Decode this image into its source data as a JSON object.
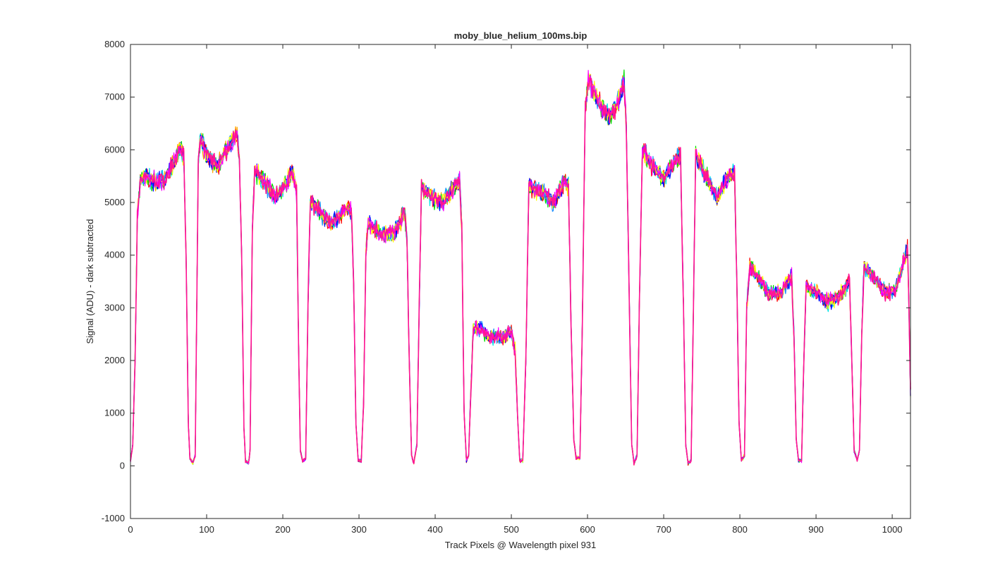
{
  "chart_data": {
    "type": "line",
    "title": "moby_blue_helium_100ms.bip",
    "xlabel": "Track Pixels @ Wavelength pixel 931",
    "ylabel": "Signal (ADU) - dark subtracted",
    "xlim": [
      0,
      1024
    ],
    "ylim": [
      -1000,
      8000
    ],
    "xticks": [
      0,
      100,
      200,
      300,
      400,
      500,
      600,
      700,
      800,
      900,
      1000
    ],
    "yticks": [
      -1000,
      0,
      1000,
      2000,
      3000,
      4000,
      5000,
      6000,
      7000,
      8000
    ],
    "grid": false,
    "legend": "none",
    "series_colors": [
      "#ffa500",
      "#ff0000",
      "#00e000",
      "#00e5e5",
      "#1e90ff",
      "#0000ff",
      "#ffff00",
      "#ff00ff"
    ],
    "top_series_color": "#ff1493",
    "noise_amplitude": 70,
    "trace_profile": [
      [
        0,
        100
      ],
      [
        3,
        400
      ],
      [
        6,
        2000
      ],
      [
        9,
        4700
      ],
      [
        13,
        5400
      ],
      [
        20,
        5500
      ],
      [
        30,
        5400
      ],
      [
        45,
        5450
      ],
      [
        55,
        5700
      ],
      [
        66,
        6050
      ],
      [
        70,
        5900
      ],
      [
        73,
        4000
      ],
      [
        76,
        800
      ],
      [
        78,
        150
      ],
      [
        82,
        50
      ],
      [
        85,
        200
      ],
      [
        87,
        3000
      ],
      [
        89,
        5800
      ],
      [
        92,
        6200
      ],
      [
        100,
        5900
      ],
      [
        115,
        5700
      ],
      [
        130,
        6100
      ],
      [
        140,
        6300
      ],
      [
        143,
        5800
      ],
      [
        146,
        4000
      ],
      [
        149,
        700
      ],
      [
        151,
        100
      ],
      [
        155,
        50
      ],
      [
        157,
        300
      ],
      [
        160,
        4500
      ],
      [
        163,
        5600
      ],
      [
        175,
        5400
      ],
      [
        190,
        5100
      ],
      [
        205,
        5350
      ],
      [
        213,
        5600
      ],
      [
        218,
        5200
      ],
      [
        221,
        2000
      ],
      [
        223,
        300
      ],
      [
        226,
        80
      ],
      [
        230,
        150
      ],
      [
        233,
        3000
      ],
      [
        236,
        5000
      ],
      [
        250,
        4800
      ],
      [
        265,
        4600
      ],
      [
        285,
        4900
      ],
      [
        290,
        4800
      ],
      [
        293,
        3500
      ],
      [
        296,
        800
      ],
      [
        299,
        100
      ],
      [
        303,
        100
      ],
      [
        306,
        1200
      ],
      [
        309,
        4000
      ],
      [
        312,
        4600
      ],
      [
        330,
        4400
      ],
      [
        345,
        4400
      ],
      [
        360,
        4800
      ],
      [
        363,
        4300
      ],
      [
        366,
        2000
      ],
      [
        369,
        200
      ],
      [
        372,
        50
      ],
      [
        376,
        400
      ],
      [
        379,
        3000
      ],
      [
        382,
        5300
      ],
      [
        395,
        5100
      ],
      [
        410,
        5000
      ],
      [
        425,
        5300
      ],
      [
        432,
        5400
      ],
      [
        435,
        4500
      ],
      [
        438,
        1000
      ],
      [
        441,
        100
      ],
      [
        444,
        200
      ],
      [
        447,
        1500
      ],
      [
        450,
        2600
      ],
      [
        460,
        2600
      ],
      [
        470,
        2450
      ],
      [
        490,
        2450
      ],
      [
        500,
        2550
      ],
      [
        505,
        2200
      ],
      [
        508,
        1000
      ],
      [
        511,
        100
      ],
      [
        515,
        100
      ],
      [
        519,
        2000
      ],
      [
        523,
        5300
      ],
      [
        540,
        5200
      ],
      [
        555,
        5000
      ],
      [
        570,
        5400
      ],
      [
        575,
        5300
      ],
      [
        578,
        3000
      ],
      [
        582,
        500
      ],
      [
        585,
        150
      ],
      [
        590,
        150
      ],
      [
        593,
        2500
      ],
      [
        597,
        6800
      ],
      [
        601,
        7300
      ],
      [
        615,
        6900
      ],
      [
        628,
        6600
      ],
      [
        640,
        6900
      ],
      [
        648,
        7300
      ],
      [
        651,
        6400
      ],
      [
        655,
        3000
      ],
      [
        658,
        400
      ],
      [
        661,
        50
      ],
      [
        665,
        200
      ],
      [
        668,
        3000
      ],
      [
        672,
        6000
      ],
      [
        685,
        5700
      ],
      [
        700,
        5450
      ],
      [
        715,
        5800
      ],
      [
        722,
        5900
      ],
      [
        726,
        3000
      ],
      [
        729,
        400
      ],
      [
        732,
        50
      ],
      [
        736,
        100
      ],
      [
        739,
        3000
      ],
      [
        742,
        5900
      ],
      [
        755,
        5500
      ],
      [
        770,
        5100
      ],
      [
        785,
        5500
      ],
      [
        793,
        5600
      ],
      [
        796,
        3500
      ],
      [
        799,
        800
      ],
      [
        802,
        100
      ],
      [
        806,
        200
      ],
      [
        809,
        3000
      ],
      [
        813,
        3800
      ],
      [
        825,
        3550
      ],
      [
        840,
        3250
      ],
      [
        855,
        3300
      ],
      [
        868,
        3600
      ],
      [
        871,
        2500
      ],
      [
        874,
        500
      ],
      [
        877,
        100
      ],
      [
        881,
        100
      ],
      [
        884,
        2000
      ],
      [
        887,
        3400
      ],
      [
        900,
        3300
      ],
      [
        915,
        3100
      ],
      [
        930,
        3200
      ],
      [
        944,
        3500
      ],
      [
        947,
        2000
      ],
      [
        950,
        300
      ],
      [
        954,
        100
      ],
      [
        957,
        300
      ],
      [
        960,
        2500
      ],
      [
        963,
        3800
      ],
      [
        975,
        3600
      ],
      [
        990,
        3300
      ],
      [
        1003,
        3300
      ],
      [
        1012,
        3700
      ],
      [
        1020,
        4150
      ],
      [
        1022,
        3000
      ],
      [
        1024,
        1400
      ]
    ]
  }
}
